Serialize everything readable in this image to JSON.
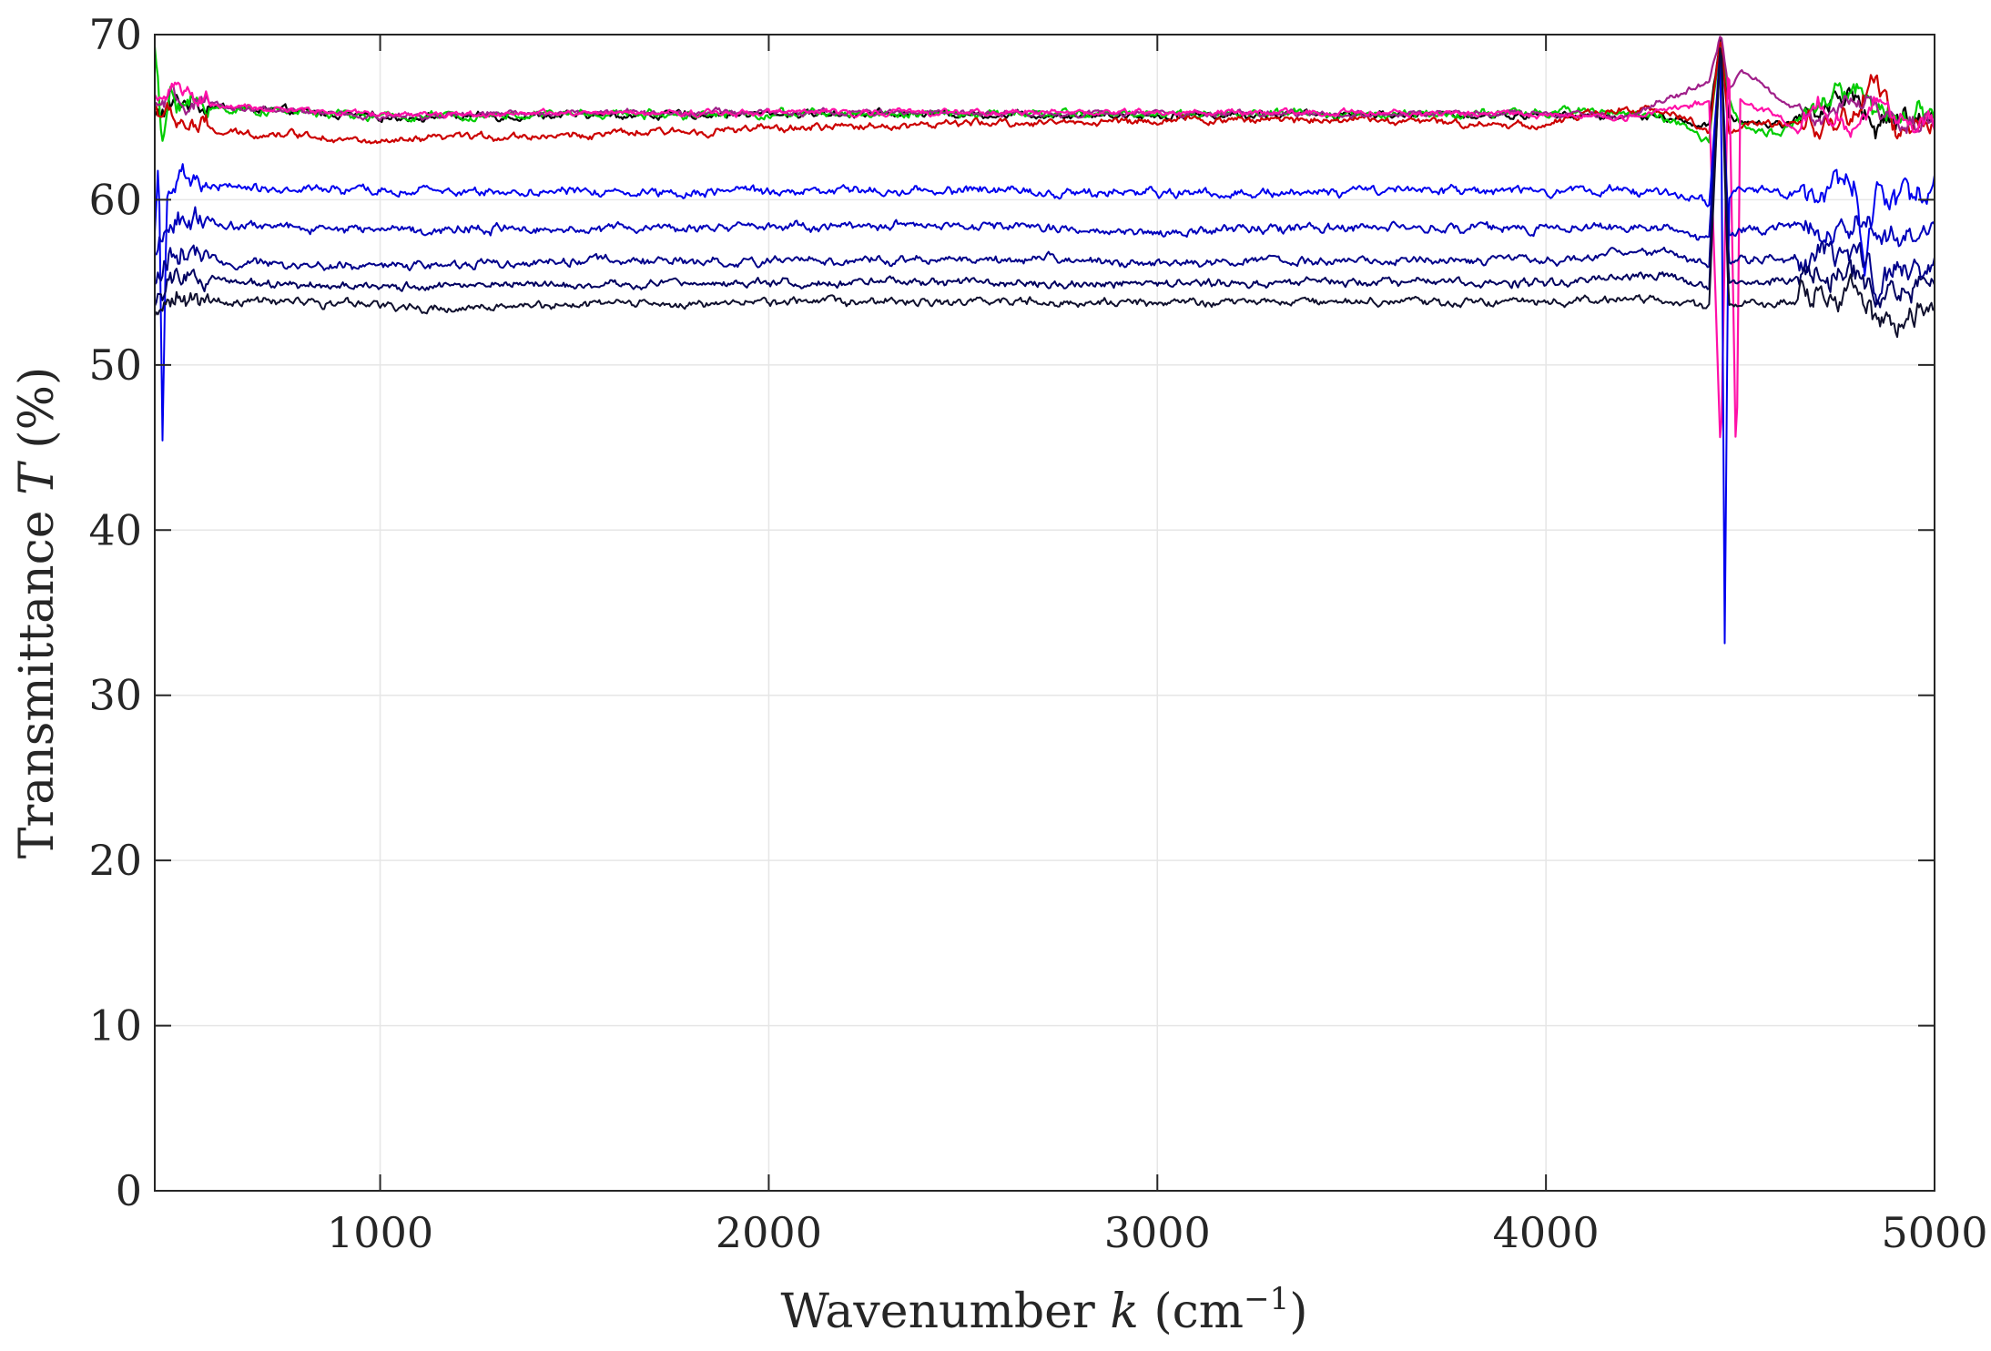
{
  "chart_data": {
    "type": "line",
    "xlabel": {
      "prefix": "Wavenumber ",
      "var": "k",
      "units_open": " (cm",
      "units_sup": "−1",
      "units_close": ")"
    },
    "ylabel": {
      "prefix": "Transmittance ",
      "var": "T",
      "units": " (%)"
    },
    "xlim": [
      420,
      5000
    ],
    "ylim": [
      0,
      70
    ],
    "xticks": [
      1000,
      2000,
      3000,
      4000,
      5000
    ],
    "yticks": [
      0,
      10,
      20,
      30,
      40,
      50,
      60,
      70
    ],
    "grid": true,
    "legend": "none",
    "series": [
      {
        "color": "#000000",
        "base": 65.2,
        "noise": 0.18,
        "upper": true,
        "x": [
          420,
          460,
          500,
          600,
          800,
          1000,
          1500,
          2000,
          2500,
          3000,
          3500,
          4000,
          4300,
          4420,
          4450,
          4470,
          4500,
          4600,
          4700,
          4800,
          4850,
          4900,
          5000
        ],
        "y": [
          65.0,
          65.6,
          66.0,
          65.6,
          65.3,
          65.0,
          65.1,
          65.2,
          65.2,
          65.1,
          65.2,
          65.1,
          65.0,
          64.5,
          70.0,
          65.0,
          64.8,
          64.5,
          65.5,
          66.5,
          64.0,
          65.0,
          64.8
        ]
      },
      {
        "color": "#00cc00",
        "base": 65.2,
        "noise": 0.2,
        "upper": true,
        "x": [
          420,
          440,
          460,
          500,
          600,
          800,
          1000,
          1500,
          2000,
          2500,
          3000,
          3500,
          4000,
          4100,
          4300,
          4420,
          4450,
          4470,
          4500,
          4600,
          4700,
          4800,
          4850,
          4900,
          5000
        ],
        "y": [
          69.5,
          63.0,
          66.5,
          65.8,
          65.5,
          65.3,
          65.0,
          65.2,
          65.2,
          65.2,
          65.2,
          65.2,
          65.2,
          65.5,
          65.0,
          63.5,
          70.0,
          66.0,
          64.5,
          64.0,
          65.8,
          66.8,
          65.2,
          65.5,
          64.8
        ]
      },
      {
        "color": "#cc0000",
        "base": 64.5,
        "noise": 0.18,
        "upper": true,
        "x": [
          420,
          460,
          500,
          600,
          800,
          1000,
          1200,
          1500,
          2000,
          2500,
          3000,
          3500,
          3700,
          4000,
          4100,
          4300,
          4420,
          4450,
          4470,
          4500,
          4600,
          4700,
          4800,
          4850,
          4900,
          5000
        ],
        "y": [
          65.5,
          65.0,
          64.6,
          64.0,
          64.0,
          63.4,
          63.8,
          63.9,
          64.3,
          64.6,
          64.8,
          64.9,
          64.7,
          64.5,
          65.2,
          65.5,
          64.2,
          70.0,
          64.0,
          64.5,
          64.5,
          64.5,
          65.0,
          67.5,
          64.0,
          64.5
        ]
      },
      {
        "color": "#a0208a",
        "base": 65.3,
        "noise": 0.15,
        "upper": true,
        "x": [
          420,
          460,
          500,
          800,
          1000,
          1500,
          2000,
          3000,
          4000,
          4200,
          4350,
          4420,
          4450,
          4470,
          4500,
          4550,
          4600,
          4700,
          4800,
          4900,
          5000
        ],
        "y": [
          65.5,
          66.0,
          65.8,
          65.3,
          65.0,
          65.3,
          65.3,
          65.2,
          65.2,
          65.0,
          66.5,
          67.0,
          70.0,
          66.5,
          68.0,
          67.0,
          66.0,
          65.0,
          66.0,
          65.0,
          64.8
        ]
      },
      {
        "color": "#ff10a8",
        "base": 65.3,
        "noise": 0.15,
        "upper": true,
        "x": [
          420,
          440,
          460,
          500,
          600,
          800,
          1000,
          1500,
          2000,
          3000,
          4000,
          4200,
          4350,
          4420,
          4450,
          4470,
          4490,
          4500,
          4600,
          4650,
          4700,
          4750,
          4800,
          4850,
          4900,
          5000
        ],
        "y": [
          66.5,
          66.0,
          67.0,
          66.2,
          65.6,
          65.4,
          65.2,
          65.2,
          65.3,
          65.3,
          65.2,
          65.0,
          65.6,
          66.0,
          44.0,
          70.0,
          43.0,
          66.0,
          65.0,
          64.0,
          66.0,
          65.0,
          64.0,
          66.0,
          65.0,
          64.5
        ]
      },
      {
        "color": "#0000ee",
        "base": 60.5,
        "noise": 0.22,
        "upper": false,
        "x": [
          420,
          430,
          440,
          450,
          470,
          500,
          600,
          800,
          1000,
          1500,
          2000,
          2500,
          3000,
          3500,
          4000,
          4300,
          4420,
          4450,
          4460,
          4470,
          4500,
          4600,
          4700,
          4800,
          4820,
          4850,
          4900,
          5000
        ],
        "y": [
          58.0,
          62.5,
          46.0,
          60.5,
          61.0,
          60.8,
          60.8,
          60.6,
          60.5,
          60.5,
          60.5,
          60.6,
          60.4,
          60.5,
          60.5,
          60.6,
          59.8,
          70.0,
          33.0,
          60.0,
          60.5,
          60.3,
          60.6,
          61.0,
          56.0,
          61.0,
          60.0,
          60.3
        ]
      },
      {
        "color": "#0000bb",
        "base": 58.3,
        "noise": 0.22,
        "upper": false,
        "x": [
          420,
          440,
          460,
          500,
          600,
          800,
          1000,
          1500,
          2000,
          2500,
          3000,
          3500,
          4000,
          4300,
          4420,
          4450,
          4470,
          4500,
          4600,
          4700,
          4800,
          4850,
          4900,
          5000
        ],
        "y": [
          56.0,
          57.5,
          59.0,
          58.8,
          58.5,
          58.3,
          58.2,
          58.3,
          58.3,
          58.4,
          58.1,
          58.3,
          58.3,
          58.4,
          57.5,
          70.0,
          58.0,
          58.2,
          58.3,
          58.5,
          58.8,
          57.5,
          58.0,
          57.5
        ]
      },
      {
        "color": "#00008a",
        "base": 56.4,
        "noise": 0.22,
        "upper": false,
        "x": [
          420,
          440,
          460,
          500,
          600,
          800,
          1000,
          1500,
          2000,
          2500,
          3000,
          3500,
          4000,
          4300,
          4420,
          4450,
          4470,
          4500,
          4600,
          4700,
          4800,
          4850,
          4900,
          5000
        ],
        "y": [
          55.0,
          55.5,
          57.0,
          56.6,
          56.2,
          56.0,
          56.0,
          56.3,
          56.3,
          56.4,
          56.2,
          56.3,
          56.4,
          56.8,
          56.0,
          70.0,
          56.0,
          56.5,
          56.3,
          56.5,
          57.0,
          55.0,
          56.0,
          56.3
        ]
      },
      {
        "color": "#000060",
        "base": 55.0,
        "noise": 0.2,
        "upper": false,
        "x": [
          420,
          440,
          460,
          500,
          600,
          800,
          1000,
          1500,
          2000,
          2500,
          3000,
          3500,
          4000,
          4300,
          4420,
          4450,
          4470,
          4500,
          4600,
          4700,
          4800,
          4850,
          4900,
          5000
        ],
        "y": [
          53.5,
          54.5,
          55.5,
          55.2,
          55.0,
          54.8,
          54.7,
          54.9,
          55.0,
          55.0,
          54.9,
          55.0,
          55.0,
          55.5,
          54.5,
          70.0,
          55.0,
          55.0,
          55.0,
          55.2,
          55.5,
          53.5,
          54.5,
          54.8
        ]
      },
      {
        "color": "#10102e",
        "base": 53.8,
        "noise": 0.2,
        "upper": false,
        "x": [
          420,
          440,
          460,
          500,
          600,
          800,
          1000,
          1200,
          1500,
          2000,
          2500,
          3000,
          3500,
          4000,
          4300,
          4420,
          4450,
          4470,
          4500,
          4600,
          4700,
          4800,
          4850,
          4880,
          4900,
          5000
        ],
        "y": [
          53.2,
          53.8,
          54.5,
          54.0,
          53.8,
          53.8,
          53.6,
          53.4,
          53.6,
          53.8,
          53.9,
          53.8,
          53.8,
          53.8,
          54.0,
          53.5,
          70.0,
          53.5,
          53.8,
          53.8,
          54.0,
          54.3,
          52.5,
          53.0,
          52.5,
          53.6
        ]
      }
    ]
  }
}
